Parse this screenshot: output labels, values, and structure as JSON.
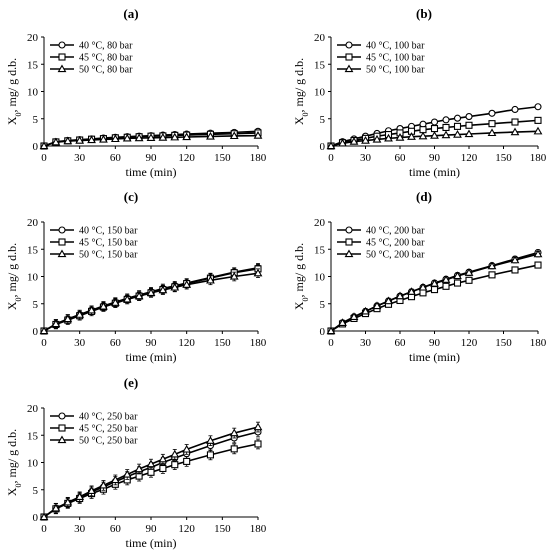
{
  "chart_data": [
    {
      "panel": "(a)",
      "type": "line",
      "xlabel": "time (min)",
      "ylabel": "X",
      "ylabel_sub": "0",
      "ylabel_rest": ", mg/ g d.b.",
      "xlim": [
        0,
        180
      ],
      "ylim": [
        0,
        20
      ],
      "xticks": [
        0,
        30,
        60,
        90,
        120,
        150,
        180
      ],
      "yticks": [
        0,
        5,
        10,
        15,
        20
      ],
      "legend_position": "top-left",
      "x": [
        0,
        10,
        20,
        30,
        40,
        50,
        60,
        70,
        80,
        90,
        100,
        110,
        120,
        140,
        160,
        180
      ],
      "series": [
        {
          "name": "40 °C, 80 bar",
          "marker": "circle",
          "values": [
            0,
            0.8,
            1.0,
            1.15,
            1.3,
            1.45,
            1.6,
            1.7,
            1.8,
            1.9,
            2.0,
            2.1,
            2.2,
            2.35,
            2.5,
            2.7
          ]
        },
        {
          "name": "45 °C, 80 bar",
          "marker": "square",
          "values": [
            0,
            0.75,
            0.95,
            1.1,
            1.25,
            1.35,
            1.5,
            1.6,
            1.7,
            1.8,
            1.85,
            1.95,
            2.0,
            2.15,
            2.25,
            2.4
          ]
        },
        {
          "name": "50 °C, 80 bar",
          "marker": "triangle",
          "values": [
            0,
            0.7,
            0.9,
            1.0,
            1.1,
            1.2,
            1.3,
            1.4,
            1.45,
            1.5,
            1.55,
            1.6,
            1.65,
            1.75,
            1.85,
            1.9
          ]
        }
      ]
    },
    {
      "panel": "(b)",
      "type": "line",
      "xlabel": "time (min)",
      "ylabel": "X",
      "ylabel_sub": "0",
      "ylabel_rest": ", mg/ g d.b.",
      "xlim": [
        0,
        180
      ],
      "ylim": [
        0,
        20
      ],
      "xticks": [
        0,
        30,
        60,
        90,
        120,
        150,
        180
      ],
      "yticks": [
        0,
        5,
        10,
        15,
        20
      ],
      "legend_position": "top-left",
      "x": [
        0,
        10,
        20,
        30,
        40,
        50,
        60,
        70,
        80,
        90,
        100,
        110,
        120,
        140,
        160,
        180
      ],
      "series": [
        {
          "name": "40 °C, 100 bar",
          "marker": "circle",
          "values": [
            0,
            0.8,
            1.3,
            1.8,
            2.3,
            2.8,
            3.2,
            3.6,
            4.0,
            4.4,
            4.8,
            5.1,
            5.4,
            6.0,
            6.7,
            7.2
          ]
        },
        {
          "name": "45 °C, 100 bar",
          "marker": "square",
          "values": [
            0,
            0.6,
            1.0,
            1.4,
            1.8,
            2.1,
            2.4,
            2.7,
            3.0,
            3.2,
            3.4,
            3.6,
            3.8,
            4.1,
            4.4,
            4.7
          ]
        },
        {
          "name": "50 °C, 100 bar",
          "marker": "triangle",
          "values": [
            0,
            0.5,
            0.8,
            1.0,
            1.2,
            1.4,
            1.55,
            1.7,
            1.8,
            1.9,
            2.0,
            2.1,
            2.2,
            2.4,
            2.55,
            2.7
          ]
        }
      ]
    },
    {
      "panel": "(c)",
      "type": "line",
      "xlabel": "time (min)",
      "ylabel": "X",
      "ylabel_sub": "0",
      "ylabel_rest": ", mg/ g d.b.",
      "xlim": [
        0,
        180
      ],
      "ylim": [
        0,
        20
      ],
      "xticks": [
        0,
        30,
        60,
        90,
        120,
        150,
        180
      ],
      "yticks": [
        0,
        5,
        10,
        15,
        20
      ],
      "legend_position": "top-left",
      "x": [
        0,
        10,
        20,
        30,
        40,
        50,
        60,
        70,
        80,
        90,
        100,
        110,
        120,
        140,
        160,
        180
      ],
      "series": [
        {
          "name": "40 °C, 150 bar",
          "marker": "circle",
          "values": [
            0,
            1.3,
            2.2,
            3.0,
            3.8,
            4.6,
            5.3,
            6.0,
            6.6,
            7.2,
            7.8,
            8.3,
            8.8,
            9.8,
            10.8,
            11.6
          ],
          "error": 0.8
        },
        {
          "name": "45 °C, 150 bar",
          "marker": "square",
          "values": [
            0,
            1.2,
            2.0,
            2.8,
            3.6,
            4.4,
            5.1,
            5.8,
            6.4,
            7.0,
            7.6,
            8.1,
            8.7,
            9.7,
            10.7,
            11.4
          ],
          "error": 0.8
        },
        {
          "name": "50 °C, 150 bar",
          "marker": "triangle",
          "values": [
            0,
            1.3,
            2.2,
            3.0,
            3.8,
            4.5,
            5.2,
            5.8,
            6.4,
            7.0,
            7.5,
            8.0,
            8.5,
            9.3,
            10.0,
            10.6
          ],
          "error": 0.8
        }
      ]
    },
    {
      "panel": "(d)",
      "type": "line",
      "xlabel": "time (min)",
      "ylabel": "X",
      "ylabel_sub": "0",
      "ylabel_rest": ", mg/ g d.b.",
      "xlim": [
        0,
        180
      ],
      "ylim": [
        0,
        20
      ],
      "xticks": [
        0,
        30,
        60,
        90,
        120,
        150,
        180
      ],
      "yticks": [
        0,
        5,
        10,
        15,
        20
      ],
      "legend_position": "top-left",
      "x": [
        0,
        10,
        20,
        30,
        40,
        50,
        60,
        70,
        80,
        90,
        100,
        110,
        120,
        140,
        160,
        180
      ],
      "series": [
        {
          "name": "40 °C, 200 bar",
          "marker": "circle",
          "values": [
            0,
            1.5,
            2.6,
            3.6,
            4.6,
            5.5,
            6.4,
            7.2,
            8.0,
            8.8,
            9.5,
            10.2,
            10.8,
            12.0,
            13.2,
            14.4
          ],
          "error": 0.5
        },
        {
          "name": "45 °C, 200 bar",
          "marker": "square",
          "values": [
            0,
            1.3,
            2.3,
            3.2,
            4.1,
            4.9,
            5.6,
            6.3,
            7.0,
            7.6,
            8.2,
            8.8,
            9.3,
            10.3,
            11.2,
            12.1
          ],
          "error": 0.5
        },
        {
          "name": "50 °C, 200 bar",
          "marker": "triangle",
          "values": [
            0,
            1.5,
            2.6,
            3.6,
            4.6,
            5.5,
            6.4,
            7.2,
            8.0,
            8.7,
            9.4,
            10.1,
            10.7,
            11.9,
            13.0,
            14.1
          ],
          "error": 0.5
        }
      ]
    },
    {
      "panel": "(e)",
      "type": "line",
      "xlabel": "time (min)",
      "ylabel": "X",
      "ylabel_sub": "0",
      "ylabel_rest": ", mg/ g d.b.",
      "xlim": [
        0,
        180
      ],
      "ylim": [
        0,
        20
      ],
      "xticks": [
        0,
        30,
        60,
        90,
        120,
        150,
        180
      ],
      "yticks": [
        0,
        5,
        10,
        15,
        20
      ],
      "legend_position": "top-left",
      "x": [
        0,
        10,
        20,
        30,
        40,
        50,
        60,
        70,
        80,
        90,
        100,
        110,
        120,
        140,
        160,
        180
      ],
      "series": [
        {
          "name": "40 °C, 250 bar",
          "marker": "circle",
          "values": [
            0,
            1.6,
            2.6,
            3.6,
            4.6,
            5.5,
            6.5,
            7.4,
            8.3,
            9.1,
            10.0,
            10.8,
            11.6,
            13.1,
            14.5,
            15.6
          ],
          "error": 0.9
        },
        {
          "name": "45 °C, 250 bar",
          "marker": "square",
          "values": [
            0,
            1.5,
            2.5,
            3.4,
            4.3,
            5.1,
            6.0,
            6.8,
            7.5,
            8.2,
            8.9,
            9.6,
            10.2,
            11.4,
            12.5,
            13.4
          ],
          "error": 0.9
        },
        {
          "name": "50 °C, 250 bar",
          "marker": "triangle",
          "values": [
            0,
            1.6,
            2.7,
            3.7,
            4.8,
            5.8,
            6.8,
            7.8,
            8.8,
            9.7,
            10.6,
            11.5,
            12.4,
            14.0,
            15.4,
            16.5
          ],
          "error": 0.9
        }
      ]
    }
  ]
}
